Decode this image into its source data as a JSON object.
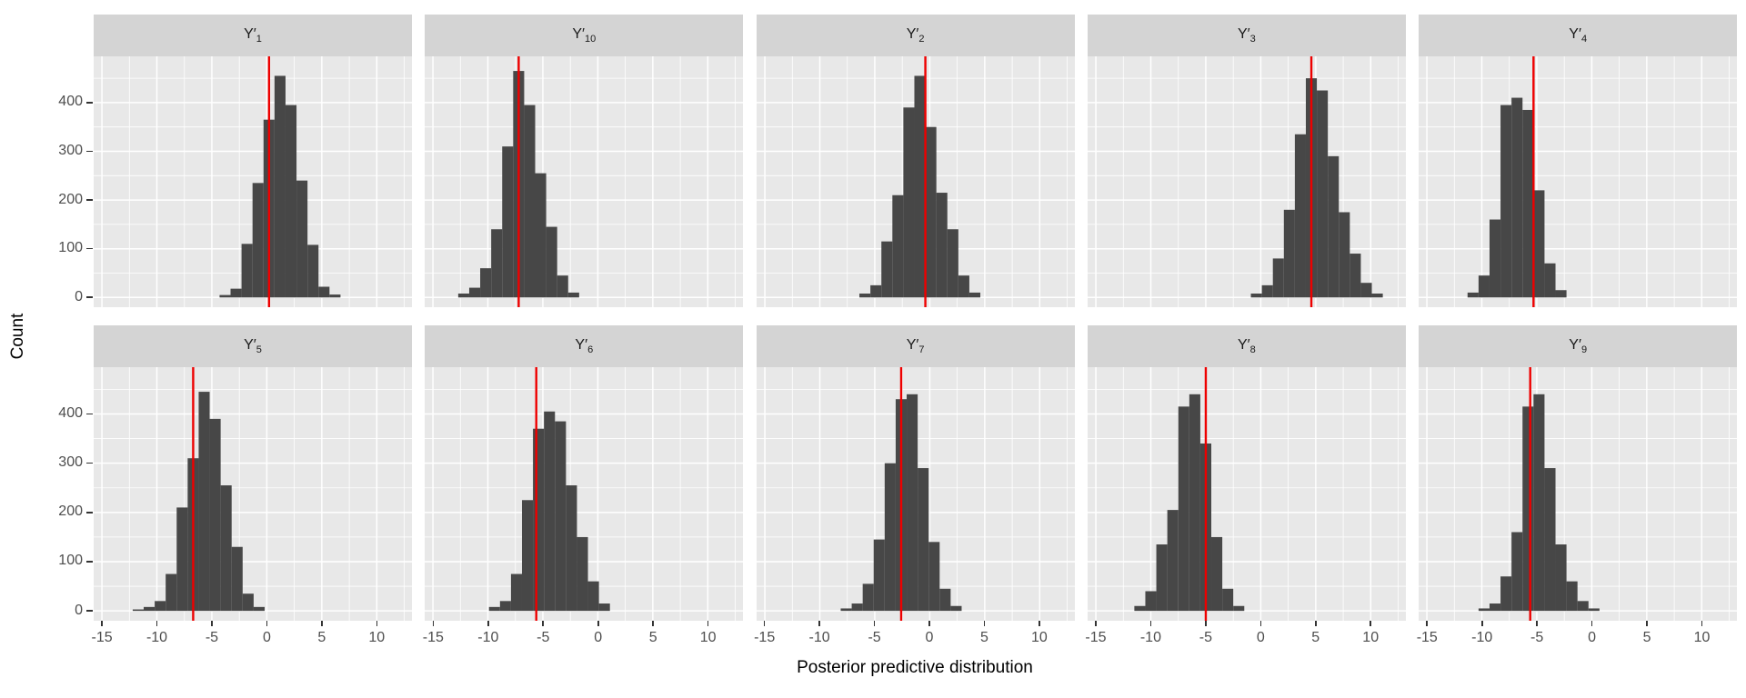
{
  "chart_data": {
    "type": "bar",
    "subtype": "faceted-histogram",
    "title": "",
    "xlabel": "Posterior predictive distribution",
    "ylabel": "Count",
    "x_ticks": [
      -15,
      -10,
      -5,
      0,
      5,
      10
    ],
    "x_tick_labels": [
      "-15",
      "-10",
      "-5",
      "0",
      "5",
      "10"
    ],
    "y_ticks": [
      0,
      100,
      200,
      300,
      400
    ],
    "y_tick_labels": [
      "0",
      "100",
      "200",
      "300",
      "400"
    ],
    "x_minor": [
      -12.5,
      -7.5,
      -2.5,
      2.5,
      7.5,
      12.5
    ],
    "y_minor": [
      50,
      150,
      250,
      350,
      450
    ],
    "x_range": [
      -15.75,
      13.2
    ],
    "y_range": [
      -20,
      495
    ],
    "binwidth": 1,
    "grid": true,
    "legend": "none",
    "facet_rows": 2,
    "facet_cols": 5,
    "colors": {
      "bar": "#474747",
      "vline": "#ee0000",
      "panel_bg": "#e8e8e8",
      "strip_bg": "#d4d4d4",
      "grid": "#ffffff",
      "tick_text": "#4d4d4d",
      "axis_text": "#000000"
    },
    "facets": [
      {
        "label": "Y′1",
        "base": "Y′",
        "sub": "1",
        "vline": 0.2,
        "bin_start": -4.3,
        "counts": [
          5,
          18,
          110,
          235,
          365,
          455,
          395,
          240,
          108,
          22,
          6
        ]
      },
      {
        "label": "Y′10",
        "base": "Y′",
        "sub": "10",
        "vline": -7.2,
        "bin_start": -12.7,
        "counts": [
          8,
          20,
          60,
          140,
          310,
          465,
          395,
          255,
          145,
          45,
          10
        ]
      },
      {
        "label": "Y′2",
        "base": "Y′",
        "sub": "2",
        "vline": -0.4,
        "bin_start": -6.4,
        "counts": [
          8,
          25,
          115,
          210,
          390,
          455,
          350,
          215,
          140,
          45,
          10
        ]
      },
      {
        "label": "Y′3",
        "base": "Y′",
        "sub": "3",
        "vline": 4.6,
        "bin_start": -0.9,
        "counts": [
          8,
          25,
          80,
          180,
          335,
          450,
          425,
          290,
          175,
          90,
          30,
          8
        ]
      },
      {
        "label": "Y′4",
        "base": "Y′",
        "sub": "4",
        "vline": -5.3,
        "bin_start": -11.3,
        "counts": [
          10,
          45,
          160,
          395,
          410,
          385,
          220,
          70,
          15
        ]
      },
      {
        "label": "Y′5",
        "base": "Y′",
        "sub": "5",
        "vline": -6.7,
        "bin_start": -12.2,
        "counts": [
          3,
          8,
          20,
          75,
          210,
          310,
          445,
          390,
          255,
          130,
          35,
          8
        ]
      },
      {
        "label": "Y′6",
        "base": "Y′",
        "sub": "6",
        "vline": -5.6,
        "bin_start": -9.9,
        "counts": [
          8,
          20,
          75,
          225,
          370,
          405,
          385,
          255,
          150,
          60,
          15
        ]
      },
      {
        "label": "Y′7",
        "base": "Y′",
        "sub": "7",
        "vline": -2.6,
        "bin_start": -8.1,
        "counts": [
          5,
          15,
          55,
          145,
          300,
          430,
          440,
          290,
          140,
          45,
          10
        ]
      },
      {
        "label": "Y′8",
        "base": "Y′",
        "sub": "8",
        "vline": -5.0,
        "bin_start": -11.5,
        "counts": [
          10,
          40,
          135,
          205,
          415,
          440,
          340,
          150,
          45,
          10
        ]
      },
      {
        "label": "Y′9",
        "base": "Y′",
        "sub": "9",
        "vline": -5.6,
        "bin_start": -10.3,
        "counts": [
          5,
          15,
          70,
          160,
          415,
          440,
          290,
          135,
          60,
          20,
          5
        ]
      }
    ]
  }
}
